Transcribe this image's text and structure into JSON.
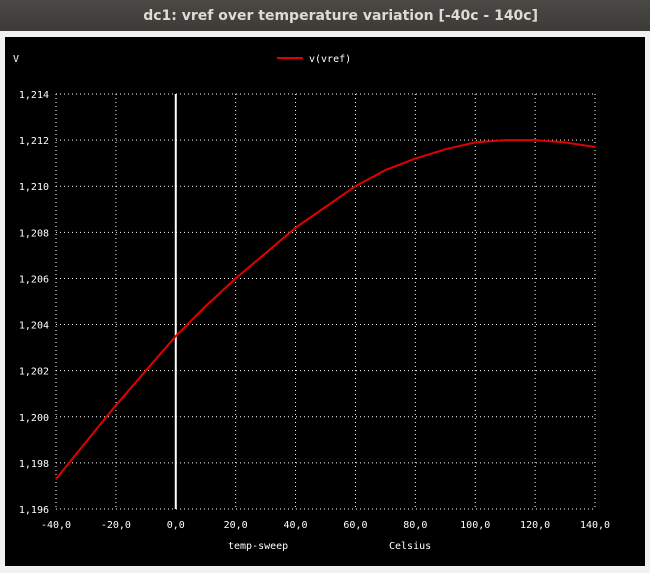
{
  "window": {
    "title": "dc1: vref over temperature variation [-40c - 140c]"
  },
  "chart_data": {
    "type": "line",
    "ylabel": "V",
    "xlabel_left": "temp-sweep",
    "xlabel_right": "Celsius",
    "xlim": [
      -40,
      140
    ],
    "ylim": [
      1.196,
      1.214
    ],
    "x_ticks": [
      "-40,0",
      "-20,0",
      "0,0",
      "20,0",
      "40,0",
      "60,0",
      "80,0",
      "100,0",
      "120,0",
      "140,0"
    ],
    "y_ticks": [
      "1,196",
      "1,198",
      "1,200",
      "1,202",
      "1,204",
      "1,206",
      "1,208",
      "1,210",
      "1,212",
      "1,214"
    ],
    "grid": true,
    "legend": "top-center",
    "series": [
      {
        "name": "v(vref)",
        "color": "#e00000",
        "x": [
          -40,
          -30,
          -20,
          -10,
          0,
          10,
          20,
          30,
          40,
          50,
          60,
          70,
          80,
          90,
          100,
          110,
          120,
          130,
          140
        ],
        "y": [
          1.1973,
          1.1989,
          1.2005,
          1.202,
          1.2035,
          1.2048,
          1.206,
          1.2071,
          1.2082,
          1.2091,
          1.21,
          1.2107,
          1.2112,
          1.2116,
          1.2119,
          1.212,
          1.212,
          1.2119,
          1.2117
        ]
      }
    ],
    "marker_line": {
      "x": 0,
      "color": "#ffffff"
    }
  }
}
